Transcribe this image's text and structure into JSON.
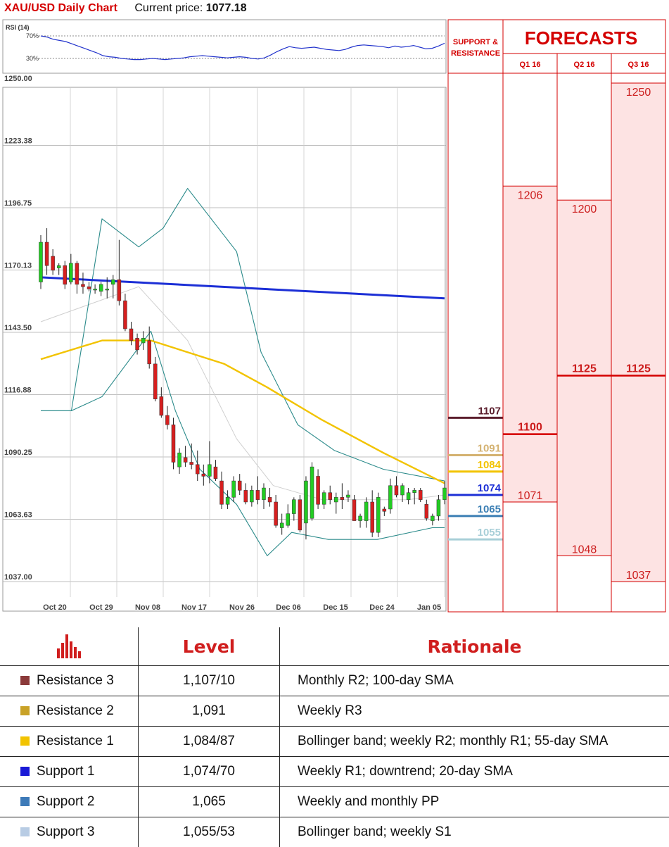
{
  "header": {
    "title": "XAU/USD Daily Chart",
    "price_label": "Current price:",
    "price_value": "1077.18"
  },
  "chart_data": {
    "type": "candlestick",
    "title": "XAU/USD Daily Chart",
    "y_ticks": [
      "1250.00",
      "1223.38",
      "1196.75",
      "1170.13",
      "1143.50",
      "1116.88",
      "1090.25",
      "1063.63",
      "1037.00"
    ],
    "ylim": [
      1037,
      1250
    ],
    "x_ticks": [
      "Oct 20",
      "Oct 29",
      "Nov 08",
      "Nov 17",
      "Nov 26",
      "Dec 06",
      "Dec 15",
      "Dec 24",
      "Jan 05"
    ],
    "rsi": {
      "label": "RSI (14)",
      "levels": [
        "70%",
        "30%"
      ],
      "values": [
        70,
        68,
        64,
        62,
        60,
        56,
        52,
        48,
        44,
        40,
        35,
        33,
        32,
        30,
        29,
        28,
        28,
        29,
        30,
        29,
        28,
        29,
        30,
        31,
        33,
        34,
        35,
        34,
        33,
        32,
        31,
        32,
        33,
        32,
        30,
        29,
        31,
        36,
        42,
        47,
        51,
        49,
        48,
        49,
        50,
        48,
        46,
        45,
        44,
        46,
        50,
        53,
        54,
        53,
        52,
        51,
        49,
        52,
        50,
        51,
        53,
        50,
        47,
        48,
        52,
        57
      ]
    },
    "candles": [
      [
        1165,
        1185,
        1162,
        1182
      ],
      [
        1182,
        1188,
        1168,
        1172
      ],
      [
        1176,
        1179,
        1168,
        1170
      ],
      [
        1171,
        1173,
        1168,
        1172
      ],
      [
        1172,
        1174,
        1162,
        1164
      ],
      [
        1165,
        1177,
        1164,
        1173
      ],
      [
        1173,
        1174,
        1160,
        1164
      ],
      [
        1164,
        1169,
        1160,
        1163
      ],
      [
        1163,
        1165,
        1161,
        1162
      ],
      [
        1162,
        1164,
        1160,
        1162
      ],
      [
        1161,
        1165,
        1159,
        1164
      ],
      [
        1162,
        1167,
        1158,
        1162
      ],
      [
        1164,
        1168,
        1158,
        1166
      ],
      [
        1166,
        1183,
        1155,
        1157
      ],
      [
        1157,
        1160,
        1144,
        1145
      ],
      [
        1145,
        1148,
        1138,
        1140
      ],
      [
        1141,
        1143,
        1134,
        1136
      ],
      [
        1139,
        1144,
        1136,
        1141
      ],
      [
        1140,
        1146,
        1128,
        1130
      ],
      [
        1130,
        1133,
        1114,
        1115
      ],
      [
        1116,
        1120,
        1107,
        1108
      ],
      [
        1108,
        1112,
        1102,
        1104
      ],
      [
        1104,
        1107,
        1085,
        1088
      ],
      [
        1086,
        1094,
        1083,
        1092
      ],
      [
        1090,
        1095,
        1086,
        1088
      ],
      [
        1088,
        1096,
        1085,
        1087
      ],
      [
        1087,
        1093,
        1080,
        1083
      ],
      [
        1083,
        1087,
        1078,
        1082
      ],
      [
        1082,
        1097,
        1079,
        1087
      ],
      [
        1086,
        1089,
        1080,
        1081
      ],
      [
        1080,
        1084,
        1068,
        1070
      ],
      [
        1070,
        1076,
        1068,
        1073
      ],
      [
        1073,
        1082,
        1071,
        1080
      ],
      [
        1080,
        1083,
        1074,
        1076
      ],
      [
        1076,
        1079,
        1070,
        1071
      ],
      [
        1071,
        1078,
        1069,
        1076
      ],
      [
        1076,
        1082,
        1070,
        1072
      ],
      [
        1072,
        1079,
        1068,
        1077
      ],
      [
        1073,
        1077,
        1069,
        1071
      ],
      [
        1071,
        1074,
        1060,
        1061
      ],
      [
        1060,
        1066,
        1057,
        1062
      ],
      [
        1061,
        1070,
        1060,
        1066
      ],
      [
        1066,
        1073,
        1063,
        1072
      ],
      [
        1072,
        1074,
        1058,
        1059
      ],
      [
        1062,
        1082,
        1055,
        1080
      ],
      [
        1064,
        1088,
        1063,
        1086
      ],
      [
        1082,
        1085,
        1068,
        1070
      ],
      [
        1070,
        1076,
        1068,
        1075
      ],
      [
        1075,
        1078,
        1070,
        1072
      ],
      [
        1071,
        1075,
        1066,
        1073
      ],
      [
        1073,
        1079,
        1068,
        1072
      ],
      [
        1073,
        1076,
        1071,
        1074
      ],
      [
        1072,
        1074,
        1063,
        1063
      ],
      [
        1063,
        1066,
        1060,
        1065
      ],
      [
        1063,
        1073,
        1060,
        1071
      ],
      [
        1071,
        1076,
        1056,
        1058
      ],
      [
        1058,
        1075,
        1056,
        1073
      ],
      [
        1068,
        1069,
        1065,
        1067
      ],
      [
        1068,
        1081,
        1066,
        1078
      ],
      [
        1078,
        1082,
        1073,
        1074
      ],
      [
        1074,
        1079,
        1071,
        1078
      ],
      [
        1072,
        1077,
        1070,
        1075
      ],
      [
        1075,
        1077,
        1070,
        1076
      ],
      [
        1076,
        1077,
        1071,
        1072
      ],
      [
        1070,
        1072,
        1063,
        1064
      ],
      [
        1063,
        1066,
        1061,
        1065
      ],
      [
        1065,
        1074,
        1063,
        1072
      ],
      [
        1072,
        1080,
        1070,
        1077
      ]
    ],
    "sma_200": [
      1167,
      1158
    ],
    "sma_55": [
      [
        1132,
        0
      ],
      [
        1140,
        10
      ],
      [
        1140,
        18
      ],
      [
        1130,
        30
      ],
      [
        1120,
        37
      ],
      [
        1106,
        46
      ],
      [
        1092,
        56
      ],
      [
        1079,
        66
      ]
    ],
    "boll_upper": [
      [
        1110,
        0
      ],
      [
        1110,
        5
      ],
      [
        1192,
        10
      ],
      [
        1180,
        16
      ],
      [
        1188,
        20
      ],
      [
        1205,
        24
      ],
      [
        1178,
        32
      ],
      [
        1135,
        36
      ],
      [
        1104,
        42
      ],
      [
        1093,
        48
      ],
      [
        1085,
        56
      ],
      [
        1080,
        66
      ]
    ],
    "boll_lower": [
      [
        1110,
        0
      ],
      [
        1110,
        5
      ],
      [
        1116,
        10
      ],
      [
        1144,
        18
      ],
      [
        1110,
        22
      ],
      [
        1085,
        26
      ],
      [
        1070,
        32
      ],
      [
        1048,
        37
      ],
      [
        1058,
        41
      ],
      [
        1055,
        47
      ],
      [
        1055,
        55
      ],
      [
        1060,
        64
      ],
      [
        1060,
        66
      ]
    ],
    "boll_middle": [
      [
        1148,
        0
      ],
      [
        1163,
        16
      ],
      [
        1140,
        24
      ],
      [
        1098,
        32
      ],
      [
        1078,
        38
      ],
      [
        1072,
        46
      ],
      [
        1072,
        60
      ],
      [
        1074,
        66
      ]
    ]
  },
  "support_resistance": {
    "title": "SUPPORT & RESISTANCE",
    "levels": [
      {
        "value": "1107",
        "color": "#5c1f2e"
      },
      {
        "value": "1091",
        "color": "#d4b271"
      },
      {
        "value": "1084",
        "color": "#f2c300"
      },
      {
        "value": "1074",
        "color": "#1c2fd6"
      },
      {
        "value": "1065",
        "color": "#3c7fb4"
      },
      {
        "value": "1055",
        "color": "#a8cfd8"
      }
    ]
  },
  "forecasts": {
    "title": "FORECASTS",
    "quarters": [
      {
        "label": "Q1 16",
        "high": "1206",
        "mid": "1100",
        "low": "1071"
      },
      {
        "label": "Q2 16",
        "high": "1200",
        "mid": "1125",
        "low": "1048"
      },
      {
        "label": "Q3 16",
        "high": "1250",
        "mid": "1125",
        "low": "1037"
      }
    ]
  },
  "levels_table": {
    "headers": [
      "Level",
      "Rationale"
    ],
    "rows": [
      {
        "name": "Resistance 3",
        "level": "1,107/10",
        "rationale": "Monthly R2; 100-day SMA",
        "color": "#8b3a3a"
      },
      {
        "name": "Resistance 2",
        "level": "1,091",
        "rationale": "Weekly R3",
        "color": "#c9a227"
      },
      {
        "name": "Resistance 1",
        "level": "1,084/87",
        "rationale": "Bollinger band; weekly R2; monthly R1; 55-day SMA",
        "color": "#f2c300"
      },
      {
        "name": "Support 1",
        "level": "1,074/70",
        "rationale": "Weekly R1; downtrend; 20-day SMA",
        "color": "#1a1ad6"
      },
      {
        "name": "Support 2",
        "level": "1,065",
        "rationale": "Weekly and monthly PP",
        "color": "#3d7ab8"
      },
      {
        "name": "Support 3",
        "level": "1,055/53",
        "rationale": "Bollinger band; weekly S1",
        "color": "#b8cce4"
      }
    ]
  }
}
